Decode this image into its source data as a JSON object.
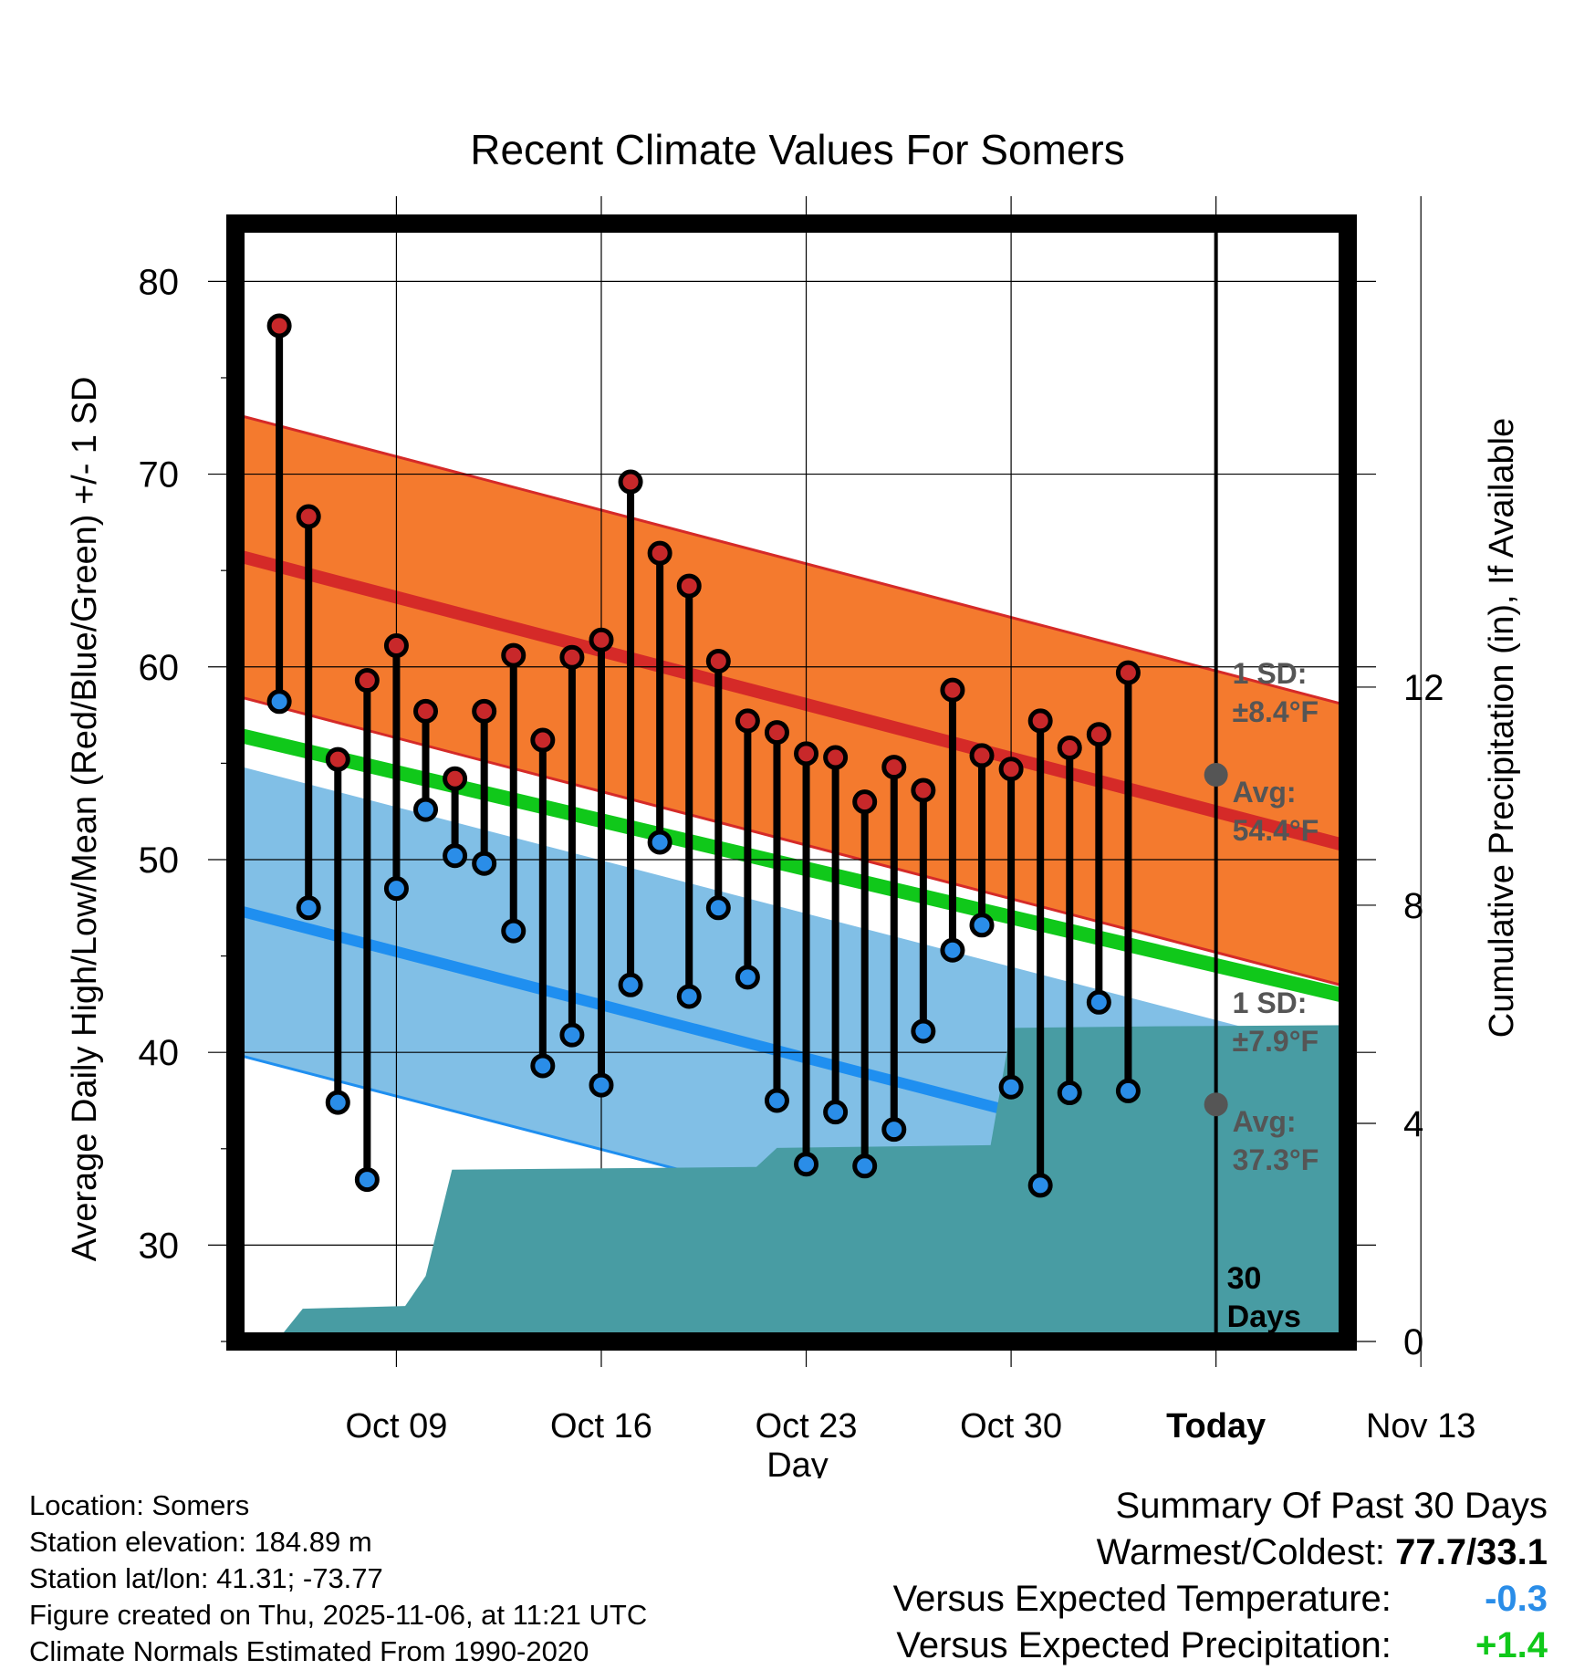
{
  "chart_data": {
    "type": "line",
    "title": "Recent Climate Values For Somers",
    "xlabel": "Day",
    "ylabel": "Average Daily High/Low/Mean (Red/Blue/Green) +/- 1 SD",
    "y2label": "Cumulative Precipitation (in), If Available",
    "xlim": [
      -0.5,
      37.5
    ],
    "ylim": [
      25,
      83
    ],
    "y2lim": [
      0,
      20.5
    ],
    "x_ticks": [
      {
        "day": 5,
        "label": "Oct 09"
      },
      {
        "day": 12,
        "label": "Oct 16"
      },
      {
        "day": 19,
        "label": "Oct 23"
      },
      {
        "day": 26,
        "label": "Oct 30"
      },
      {
        "day": 33,
        "label": "Today"
      },
      {
        "day": 40,
        "label": "Nov 13"
      }
    ],
    "y_ticks": [
      30,
      40,
      50,
      60,
      70,
      80
    ],
    "y2_ticks": [
      0,
      4,
      8,
      12
    ],
    "day_of_oct": [
      4,
      5,
      6,
      7,
      8,
      9,
      10,
      11,
      12,
      13,
      14,
      15,
      16,
      17,
      18,
      19,
      20,
      21,
      22,
      23,
      24,
      25,
      26,
      27,
      28,
      29,
      30,
      31,
      32,
      33,
      34,
      35,
      36,
      37,
      38
    ],
    "daily": {
      "days": [
        1,
        2,
        3,
        4,
        5,
        6,
        7,
        8,
        9,
        10,
        11,
        12,
        13,
        14,
        15,
        16,
        17,
        18,
        19,
        20,
        21,
        22,
        23,
        24,
        25,
        26,
        27,
        28,
        29,
        30
      ],
      "highs": [
        77.7,
        67.8,
        55.2,
        59.3,
        61.1,
        57.7,
        54.2,
        57.7,
        60.6,
        56.2,
        60.5,
        61.4,
        69.6,
        65.9,
        64.2,
        60.3,
        57.2,
        56.6,
        55.5,
        55.3,
        53.0,
        54.8,
        53.6,
        58.8,
        55.4,
        54.7,
        57.2,
        55.8,
        56.5,
        59.7
      ],
      "lows": [
        58.2,
        47.5,
        37.4,
        33.4,
        48.5,
        52.6,
        50.2,
        49.8,
        46.3,
        39.3,
        40.9,
        38.3,
        43.5,
        50.9,
        42.9,
        47.5,
        43.9,
        37.5,
        34.2,
        36.9,
        34.1,
        36.0,
        41.1,
        45.3,
        46.6,
        38.2,
        33.1,
        37.9,
        42.6,
        38.0
      ]
    },
    "normals": {
      "high_start": 65.8,
      "high_end": 50.7,
      "low_start": 47.4,
      "low_end": 32.4,
      "mean_start": 56.5,
      "mean_end": 42.9,
      "high_sd": 7.3,
      "low_sd": 7.5
    },
    "precip_steps": [
      {
        "day": 0.9,
        "value": 0.0
      },
      {
        "day": 1.8,
        "value": 0.6
      },
      {
        "day": 5.3,
        "value": 0.65
      },
      {
        "day": 6.0,
        "value": 1.2
      },
      {
        "day": 6.9,
        "value": 3.15
      },
      {
        "day": 17.3,
        "value": 3.2
      },
      {
        "day": 18.0,
        "value": 3.55
      },
      {
        "day": 25.3,
        "value": 3.6
      },
      {
        "day": 26.0,
        "value": 5.75
      },
      {
        "day": 31.0,
        "value": 5.78
      },
      {
        "day": 37.5,
        "value": 5.8
      }
    ],
    "annotations": {
      "high_sd_label": "1 SD:",
      "high_sd_value": "±8.4°F",
      "high_avg_label": "Avg:",
      "high_avg_value": "54.4°F",
      "low_sd_label": "1 SD:",
      "low_sd_value": "±7.9°F",
      "low_avg_label": "Avg:",
      "low_avg_value": "37.3°F",
      "today_high_avg": 54.4,
      "today_low_avg": 37.3,
      "window_label_line1": "30",
      "window_label_line2": "Days"
    },
    "colors": {
      "high_band": "#f47a2e",
      "high_line": "#d52a28",
      "low_band": "#81bfe6",
      "low_line": "#1f8ff0",
      "mean_line": "#10c81a",
      "precip_fill": "#489ca3",
      "high_dot": "#c8282a",
      "low_dot": "#2a8de8",
      "avg_dot": "#555555",
      "annotation_text": "#555555"
    }
  },
  "info": {
    "location": "Location: Somers",
    "elevation": "Station elevation: 184.89 m",
    "latlon": "Station lat/lon: 41.31; -73.77",
    "created": "Figure created on Thu, 2025-11-06, at 11:21 UTC",
    "normals": "Climate Normals Estimated From 1990-2020"
  },
  "summary": {
    "title": "Summary Of Past 30 Days",
    "warm_cold_label": "Warmest/Coldest:",
    "warm_cold_value": "77.7/33.1",
    "temp_label": "Versus Expected Temperature:",
    "temp_value": "-0.3",
    "temp_color": "#2a8de8",
    "precip_label": "Versus Expected Precipitation:",
    "precip_value": "+1.4",
    "precip_color": "#10c81a"
  }
}
